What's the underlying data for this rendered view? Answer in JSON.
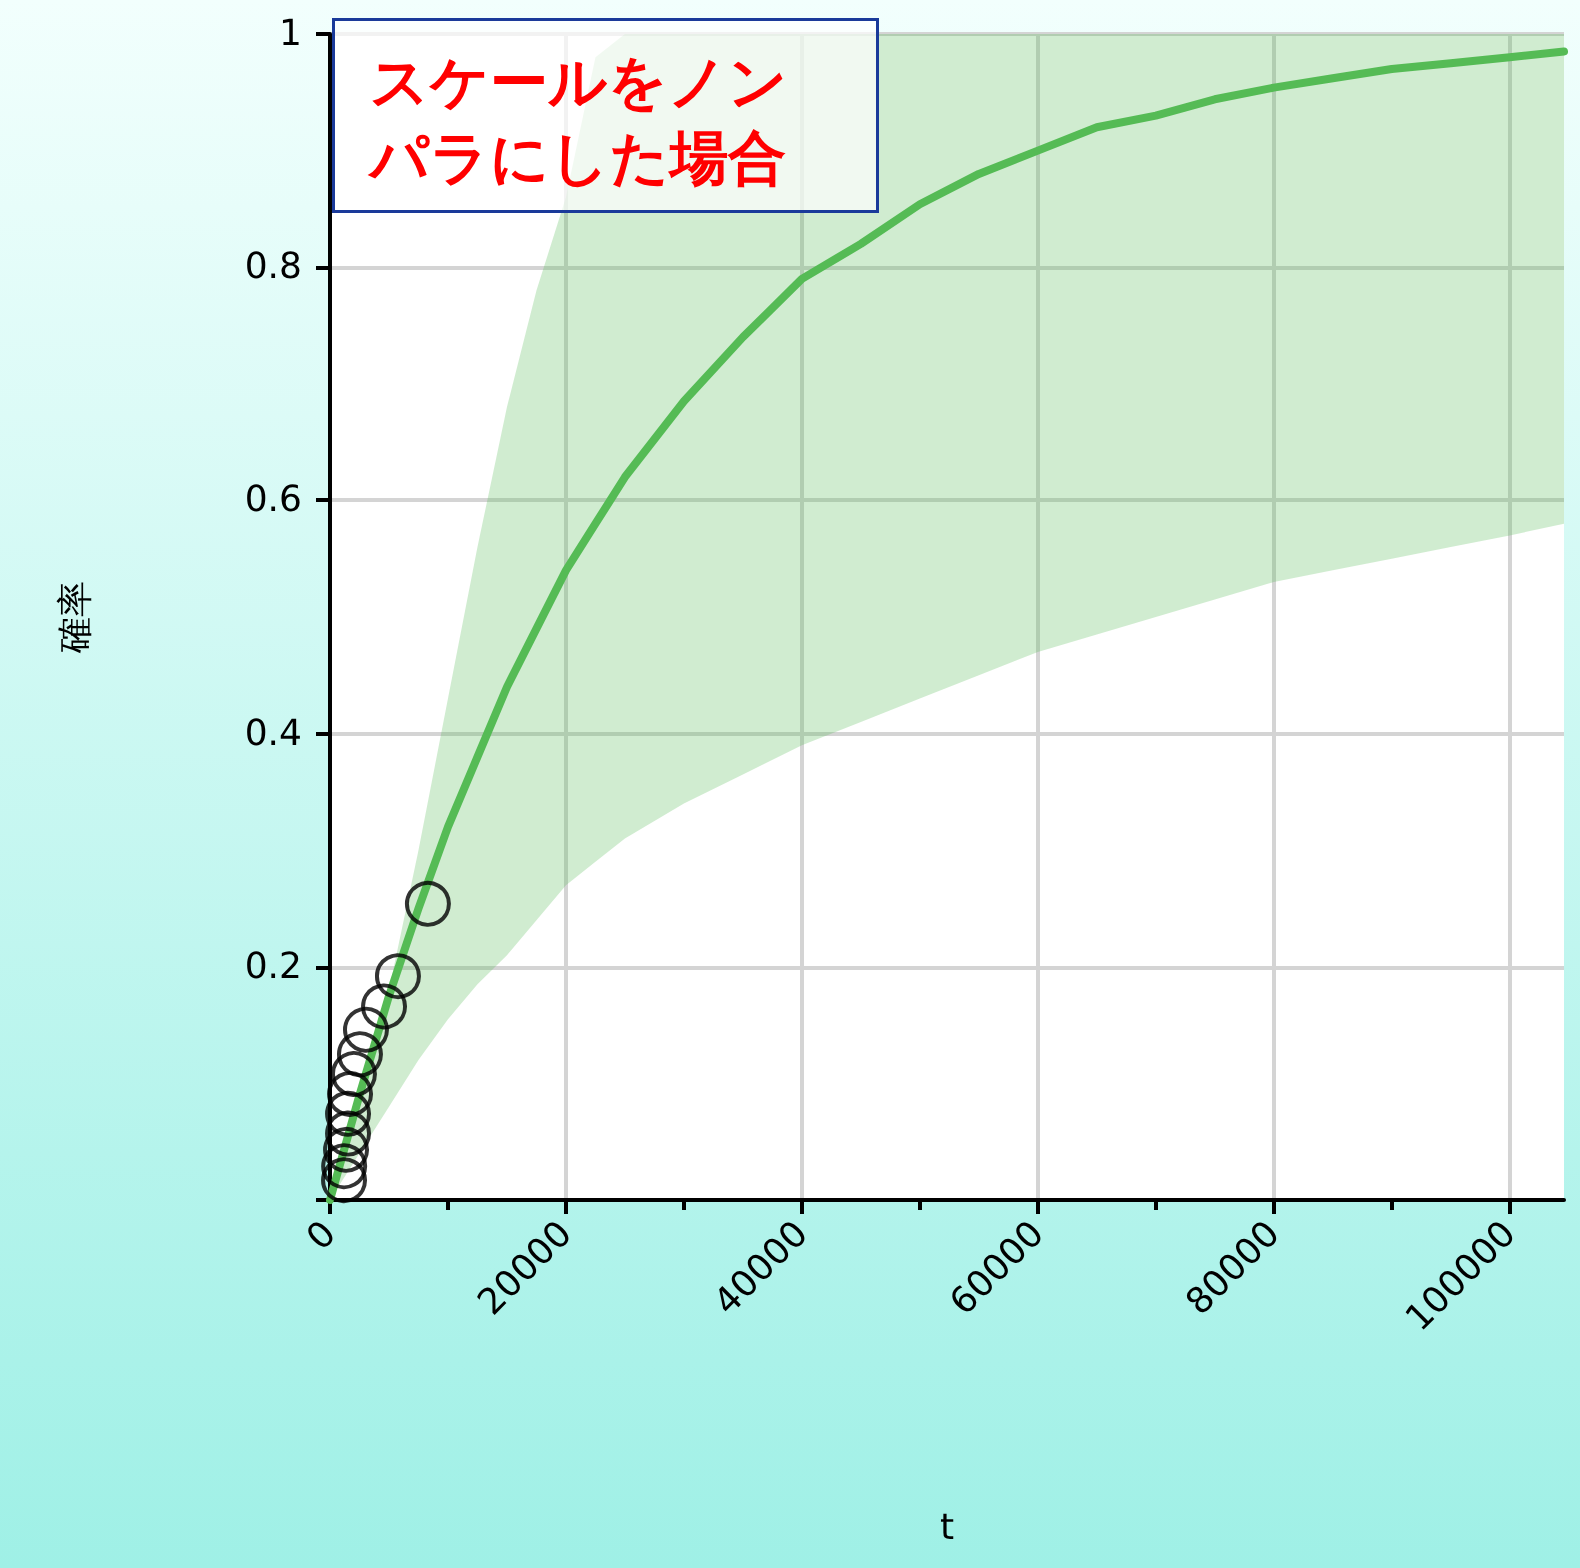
{
  "chart_data": {
    "type": "line",
    "xlabel": "t",
    "ylabel": "確率",
    "annotations": [
      "スケールをノンパラにした場合"
    ],
    "xlim": [
      0,
      104600
    ],
    "xticks": [
      0,
      20000,
      40000,
      60000,
      80000,
      100000
    ],
    "ylim": [
      0,
      1
    ],
    "yticks": [
      {
        "value": 0,
        "label": null
      },
      0.2,
      0.4,
      0.6,
      0.8,
      1
    ],
    "grid": true,
    "series": [
      {
        "color": "#55bb55",
        "marker": "none",
        "x": [
          0,
          2500,
          5000,
          7500,
          10000,
          12500,
          15000,
          17500,
          20000,
          22500,
          25000,
          30000,
          35000,
          40000,
          45000,
          50000,
          55000,
          60000,
          65000,
          70000,
          75000,
          80000,
          85000,
          90000,
          95000,
          100000,
          104600
        ],
        "values": [
          0,
          0.09,
          0.175,
          0.25,
          0.32,
          0.38,
          0.44,
          0.49,
          0.54,
          0.58,
          0.62,
          0.685,
          0.74,
          0.79,
          0.82,
          0.854,
          0.88,
          0.9,
          0.92,
          0.93,
          0.944,
          0.954,
          0.962,
          0.97,
          0.975,
          0.98,
          0.985
        ],
        "lower": [
          0,
          0.04,
          0.08,
          0.12,
          0.155,
          0.185,
          0.21,
          0.24,
          0.27,
          0.29,
          0.31,
          0.34,
          0.365,
          0.39,
          0.41,
          0.43,
          0.45,
          0.47,
          0.485,
          0.5,
          0.515,
          0.53,
          0.54,
          0.55,
          0.56,
          0.57,
          0.58
        ],
        "upper": [
          0,
          0.08,
          0.18,
          0.3,
          0.43,
          0.56,
          0.68,
          0.78,
          0.86,
          0.98,
          1,
          1,
          1,
          1,
          1,
          1,
          1,
          1,
          1,
          1,
          1,
          1,
          1,
          1,
          1,
          1,
          1
        ]
      },
      {
        "type": "scatter",
        "color": "#000000",
        "marker": "circle",
        "x": [
          1190,
          1200,
          1360,
          1530,
          1530,
          1700,
          2030,
          2540,
          3050,
          4580,
          5760,
          8300
        ],
        "values": [
          0.017,
          0.029,
          0.043,
          0.057,
          0.074,
          0.091,
          0.108,
          0.125,
          0.146,
          0.166,
          0.192,
          0.254
        ]
      }
    ]
  }
}
